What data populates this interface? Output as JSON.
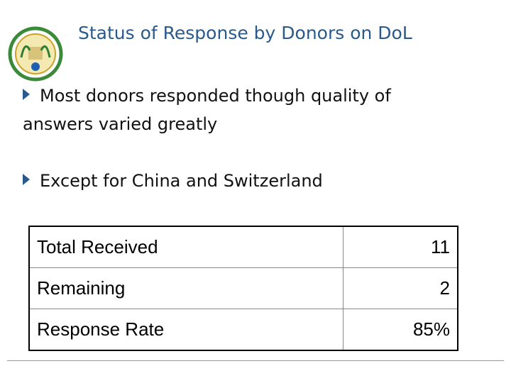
{
  "header": {
    "title": "Status of Response by Donors on DoL"
  },
  "bullets": [
    "Most donors responded though quality of answers varied greatly",
    "Except for China and Switzerland"
  ],
  "table": {
    "rows": [
      [
        "Total Received",
        11
      ],
      [
        "Remaining",
        2
      ],
      [
        "Response Rate",
        "85%"
      ]
    ]
  }
}
